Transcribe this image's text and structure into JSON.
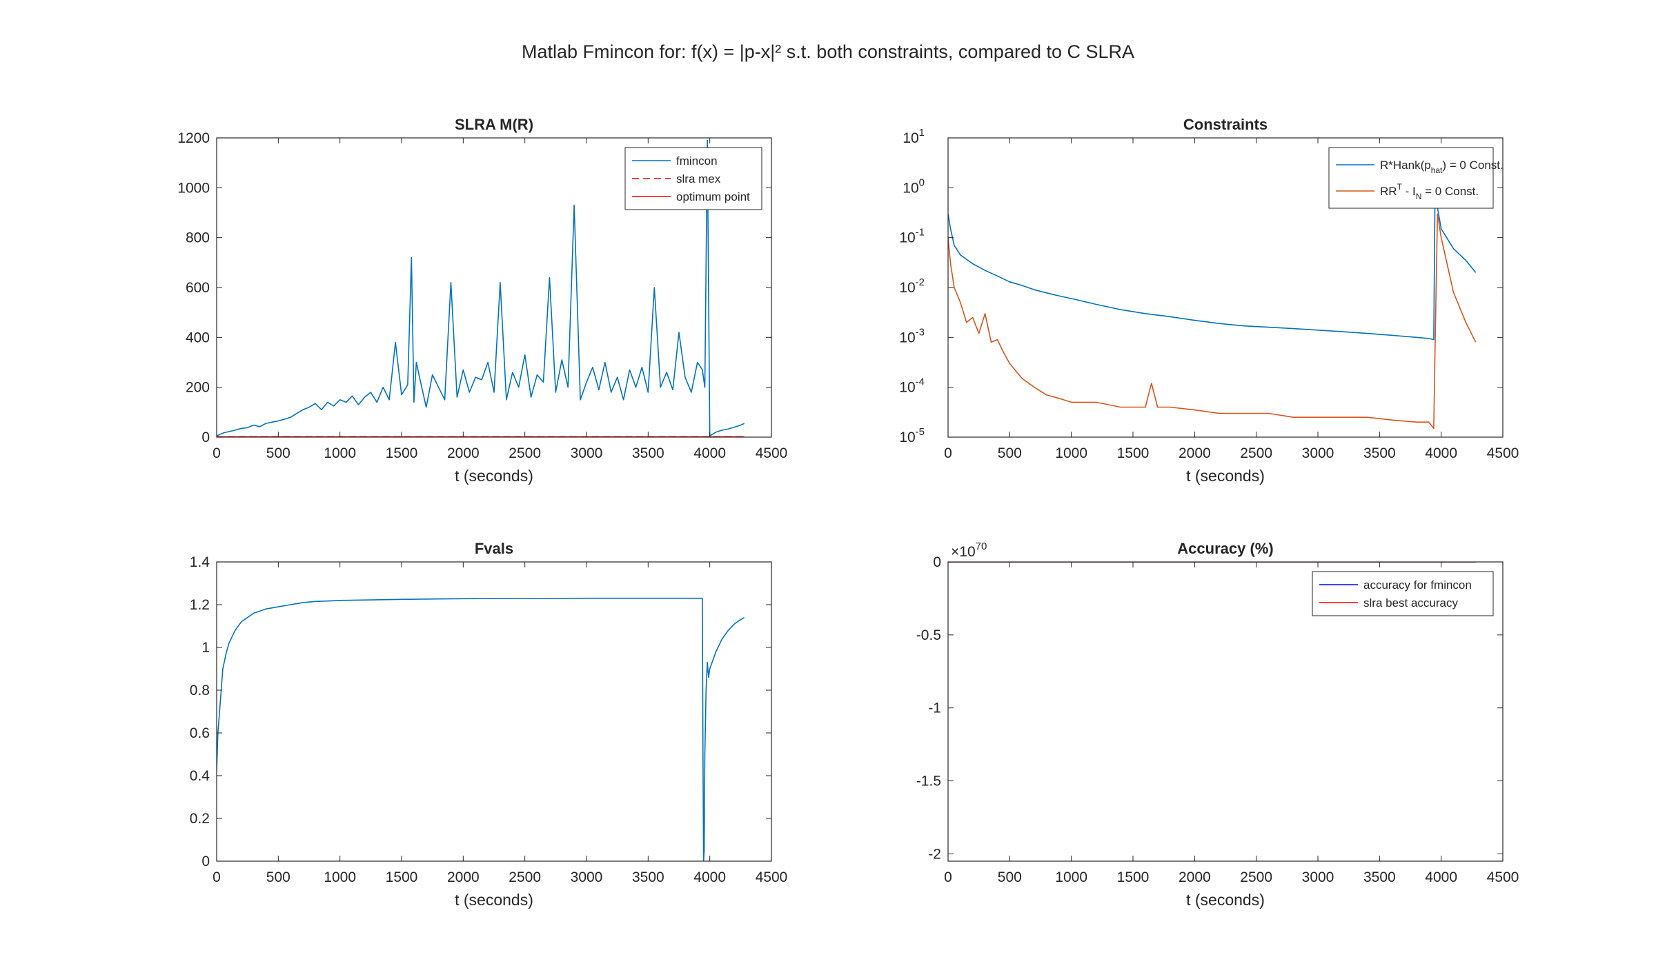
{
  "figure": {
    "title": "Matlab Fmincon for: f(x) = |p-x|² s.t. both constraints, compared to C SLRA"
  },
  "chart_data": [
    {
      "id": "slra",
      "type": "line",
      "title": "SLRA M(R)",
      "xlabel": "t (seconds)",
      "ylabel": "",
      "xlim": [
        0,
        4500
      ],
      "ylim": [
        0,
        1200
      ],
      "yscale": "linear",
      "xticks": [
        0,
        500,
        1000,
        1500,
        2000,
        2500,
        3000,
        3500,
        4000,
        4500
      ],
      "yticks": [
        0,
        200,
        400,
        600,
        800,
        1000,
        1200
      ],
      "legend_position": "top-right",
      "series": [
        {
          "name": "fmincon",
          "color": "#0072BD",
          "style": "solid",
          "x": [
            0,
            30,
            60,
            100,
            150,
            200,
            250,
            300,
            350,
            400,
            450,
            500,
            550,
            600,
            650,
            700,
            750,
            800,
            850,
            900,
            950,
            1000,
            1050,
            1100,
            1150,
            1200,
            1250,
            1300,
            1350,
            1400,
            1450,
            1500,
            1550,
            1580,
            1600,
            1620,
            1650,
            1700,
            1750,
            1800,
            1850,
            1900,
            1950,
            2000,
            2050,
            2100,
            2150,
            2200,
            2250,
            2300,
            2350,
            2400,
            2450,
            2500,
            2550,
            2600,
            2650,
            2700,
            2750,
            2800,
            2850,
            2900,
            2950,
            3000,
            3050,
            3100,
            3150,
            3200,
            3250,
            3300,
            3350,
            3400,
            3450,
            3500,
            3550,
            3600,
            3650,
            3700,
            3750,
            3800,
            3850,
            3900,
            3940,
            3960,
            3980,
            4000,
            4050,
            4100,
            4150,
            4200,
            4250,
            4280
          ],
          "y": [
            5,
            12,
            18,
            22,
            28,
            35,
            38,
            48,
            42,
            55,
            60,
            65,
            72,
            80,
            95,
            110,
            120,
            135,
            110,
            140,
            125,
            150,
            140,
            165,
            130,
            160,
            180,
            140,
            200,
            150,
            380,
            170,
            210,
            720,
            140,
            300,
            230,
            120,
            250,
            200,
            150,
            620,
            160,
            270,
            180,
            240,
            230,
            300,
            180,
            620,
            150,
            260,
            200,
            330,
            160,
            250,
            220,
            640,
            180,
            310,
            200,
            930,
            150,
            220,
            280,
            190,
            300,
            180,
            240,
            150,
            270,
            200,
            280,
            180,
            600,
            200,
            260,
            190,
            420,
            240,
            180,
            300,
            270,
            200,
            1190,
            5,
            20,
            28,
            33,
            40,
            48,
            55
          ]
        },
        {
          "name": "slra mex",
          "color": "#FF0000",
          "style": "dashed",
          "x": [
            0,
            4280
          ],
          "y": [
            2,
            2
          ]
        },
        {
          "name": "optimum point",
          "color": "#FF0000",
          "style": "solid",
          "x": [
            0,
            4280
          ],
          "y": [
            1,
            1
          ]
        }
      ]
    },
    {
      "id": "constraints",
      "type": "line",
      "title": "Constraints",
      "xlabel": "t (seconds)",
      "ylabel": "",
      "xlim": [
        0,
        4500
      ],
      "ylim": [
        1e-05,
        10
      ],
      "yscale": "log",
      "xticks": [
        0,
        500,
        1000,
        1500,
        2000,
        2500,
        3000,
        3500,
        4000,
        4500
      ],
      "yticks": [
        {
          "base": "10",
          "exp": "1"
        },
        {
          "base": "10",
          "exp": "0"
        },
        {
          "base": "10",
          "exp": "-1"
        },
        {
          "base": "10",
          "exp": "-2"
        },
        {
          "base": "10",
          "exp": "-3"
        },
        {
          "base": "10",
          "exp": "-4"
        },
        {
          "base": "10",
          "exp": "-5"
        }
      ],
      "legend_position": "top-right",
      "legend_labels": [
        {
          "base": "R*Hank(p",
          "sub": "hat",
          "rest": ") = 0 Const."
        },
        {
          "base": "RR",
          "sup": "T",
          "mid": " - I",
          "sub": "N",
          "rest": " = 0 Const."
        }
      ],
      "series": [
        {
          "name": "R*Hank(p_hat) = 0 Const.",
          "color": "#0072BD",
          "style": "solid",
          "x": [
            0,
            20,
            50,
            100,
            200,
            300,
            400,
            500,
            600,
            700,
            800,
            900,
            1000,
            1200,
            1400,
            1600,
            1800,
            2000,
            2200,
            2400,
            2600,
            2800,
            3000,
            3200,
            3400,
            3600,
            3800,
            3900,
            3940,
            3950,
            3970,
            4000,
            4100,
            4200,
            4280
          ],
          "y": [
            0.3,
            0.15,
            0.07,
            0.045,
            0.03,
            0.022,
            0.017,
            0.013,
            0.011,
            0.009,
            0.0078,
            0.0068,
            0.006,
            0.0046,
            0.0036,
            0.003,
            0.0026,
            0.0022,
            0.0019,
            0.0017,
            0.0016,
            0.0015,
            0.0014,
            0.0013,
            0.0012,
            0.0011,
            0.001,
            0.00095,
            0.0009,
            0.7,
            0.4,
            0.15,
            0.06,
            0.035,
            0.02
          ]
        },
        {
          "name": "RR^T - I_N = 0 Const.",
          "color": "#D95319",
          "style": "solid",
          "x": [
            0,
            20,
            50,
            100,
            150,
            200,
            250,
            300,
            350,
            400,
            450,
            500,
            600,
            700,
            800,
            900,
            1000,
            1200,
            1400,
            1600,
            1650,
            1700,
            1800,
            2000,
            2200,
            2400,
            2600,
            2800,
            3000,
            3200,
            3400,
            3600,
            3800,
            3900,
            3940,
            3950,
            3970,
            4000,
            4100,
            4200,
            4280
          ],
          "y": [
            0.1,
            0.03,
            0.01,
            0.005,
            0.002,
            0.0025,
            0.0012,
            0.003,
            0.0008,
            0.0009,
            0.0005,
            0.0003,
            0.00015,
            0.0001,
            7e-05,
            6e-05,
            5e-05,
            5e-05,
            4e-05,
            4e-05,
            0.00012,
            4e-05,
            4e-05,
            3.5e-05,
            3e-05,
            3e-05,
            3e-05,
            2.5e-05,
            2.5e-05,
            2.5e-05,
            2.5e-05,
            2.2e-05,
            2e-05,
            2e-05,
            1.5e-05,
            0.0005,
            0.3,
            0.1,
            0.008,
            0.002,
            0.0008
          ]
        }
      ]
    },
    {
      "id": "fvals",
      "type": "line",
      "title": "Fvals",
      "xlabel": "t (seconds)",
      "ylabel": "",
      "xlim": [
        0,
        4500
      ],
      "ylim": [
        0,
        1.4
      ],
      "yscale": "linear",
      "xticks": [
        0,
        500,
        1000,
        1500,
        2000,
        2500,
        3000,
        3500,
        4000,
        4500
      ],
      "yticks": [
        0,
        0.2,
        0.4,
        0.6,
        0.8,
        1,
        1.2,
        1.4
      ],
      "series": [
        {
          "name": "",
          "color": "#0072BD",
          "style": "solid",
          "x": [
            0,
            10,
            30,
            50,
            80,
            100,
            150,
            200,
            250,
            300,
            400,
            500,
            600,
            700,
            800,
            900,
            1000,
            1500,
            2000,
            2500,
            3000,
            3500,
            3900,
            3940,
            3945,
            3950,
            3955,
            3960,
            3970,
            3980,
            3990,
            4000,
            4050,
            4100,
            4150,
            4200,
            4250,
            4280
          ],
          "y": [
            0.42,
            0.6,
            0.75,
            0.9,
            0.98,
            1.02,
            1.08,
            1.12,
            1.14,
            1.16,
            1.18,
            1.19,
            1.2,
            1.21,
            1.215,
            1.217,
            1.22,
            1.225,
            1.228,
            1.229,
            1.23,
            1.23,
            1.23,
            1.23,
            0.5,
            0.0,
            0.05,
            0.5,
            0.8,
            0.93,
            0.86,
            0.9,
            0.98,
            1.04,
            1.08,
            1.11,
            1.13,
            1.14
          ]
        }
      ]
    },
    {
      "id": "accuracy",
      "type": "line",
      "title": "Accuracy (%)",
      "xlabel": "t (seconds)",
      "ylabel": "",
      "xlim": [
        0,
        4500
      ],
      "ylim": [
        -2.05,
        0
      ],
      "yscale": "linear",
      "y_exponent": {
        "base": "×10",
        "exp": "70"
      },
      "xticks": [
        0,
        500,
        1000,
        1500,
        2000,
        2500,
        3000,
        3500,
        4000,
        4500
      ],
      "yticks": [
        0,
        -0.5,
        -1,
        -1.5,
        -2
      ],
      "legend_position": "top-right",
      "series": [
        {
          "name": "accuracy for fmincon",
          "color": "#0000FF",
          "style": "solid",
          "x": [
            0,
            4280
          ],
          "y": [
            0,
            0
          ]
        },
        {
          "name": "slra best accuracy",
          "color": "#FF0000",
          "style": "solid",
          "x": [
            0,
            4280
          ],
          "y": [
            0,
            0
          ]
        }
      ]
    }
  ]
}
